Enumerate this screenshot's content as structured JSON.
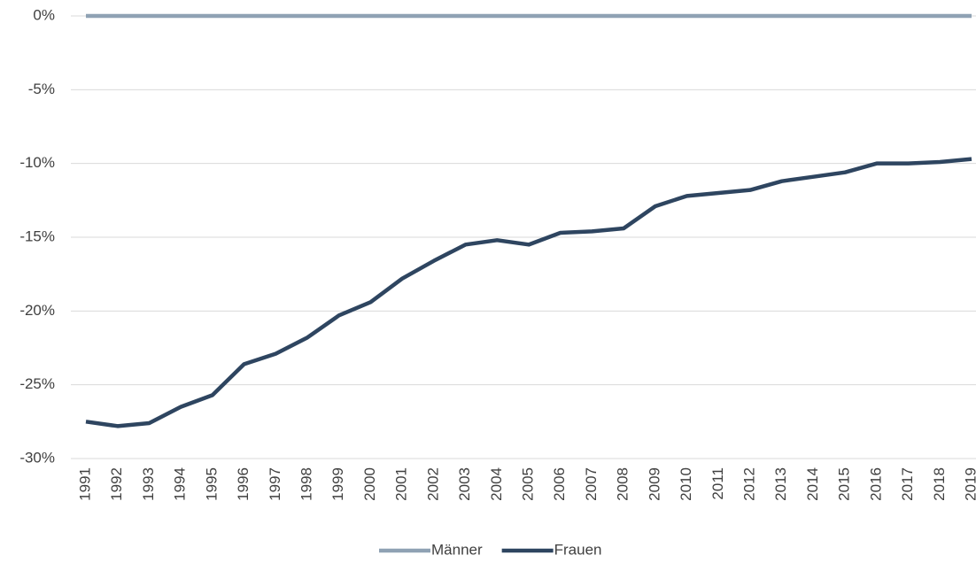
{
  "chart_data": {
    "type": "line",
    "categories": [
      "1991",
      "1992",
      "1993",
      "1994",
      "1995",
      "1996",
      "1997",
      "1998",
      "1999",
      "2000",
      "2001",
      "2002",
      "2003",
      "2004",
      "2005",
      "2006",
      "2007",
      "2008",
      "2009",
      "2010",
      "2011",
      "2012",
      "2013",
      "2014",
      "2015",
      "2016",
      "2017",
      "2018",
      "2019"
    ],
    "series": [
      {
        "name": "Männer",
        "color": "#8fa2b4",
        "values": [
          0,
          0,
          0,
          0,
          0,
          0,
          0,
          0,
          0,
          0,
          0,
          0,
          0,
          0,
          0,
          0,
          0,
          0,
          0,
          0,
          0,
          0,
          0,
          0,
          0,
          0,
          0,
          0,
          0
        ]
      },
      {
        "name": "Frauen",
        "color": "#2e4560",
        "values": [
          -27.5,
          -27.8,
          -27.6,
          -26.5,
          -25.7,
          -23.6,
          -22.9,
          -21.8,
          -20.3,
          -19.4,
          -17.8,
          -16.6,
          -15.5,
          -15.2,
          -15.5,
          -14.7,
          -14.6,
          -14.4,
          -12.9,
          -12.2,
          -12.0,
          -11.8,
          -11.2,
          -10.9,
          -10.6,
          -10.0,
          -10.0,
          -9.9,
          -9.7
        ]
      }
    ],
    "ylim": [
      -30,
      0
    ],
    "yticks": [
      {
        "value": 0,
        "label": "0%"
      },
      {
        "value": -5,
        "label": "-5%"
      },
      {
        "value": -10,
        "label": "-10%"
      },
      {
        "value": -15,
        "label": "-15%"
      },
      {
        "value": -20,
        "label": "-20%"
      },
      {
        "value": -25,
        "label": "-25%"
      },
      {
        "value": -30,
        "label": "-30%"
      }
    ],
    "grid": true,
    "legend": "bottom"
  }
}
